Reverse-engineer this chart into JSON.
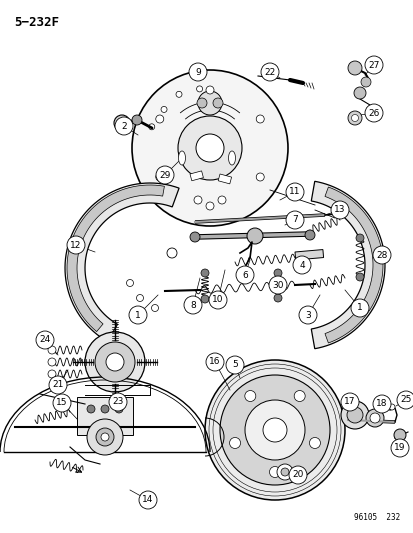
{
  "title": "5−232F",
  "watermark": "96105  232",
  "bg": "#ffffff",
  "fg": "#000000",
  "figsize": [
    4.14,
    5.33
  ],
  "dpi": 100
}
